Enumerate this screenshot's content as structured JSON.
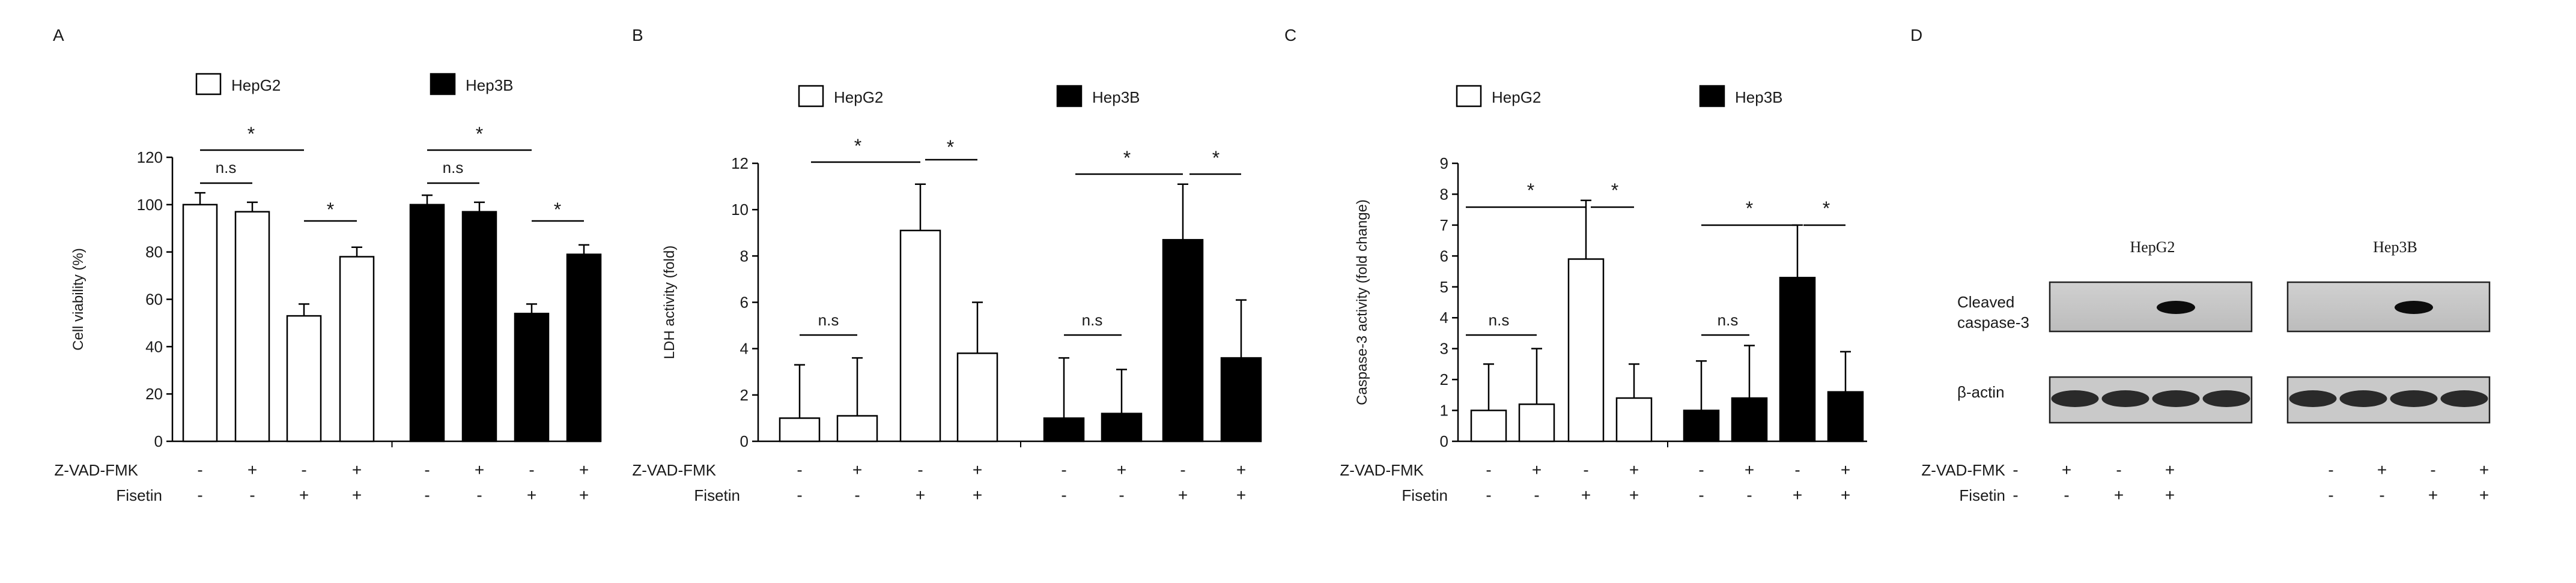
{
  "figure": {
    "panels": [
      "A",
      "B",
      "C",
      "D"
    ],
    "legend": {
      "hepg2": "HepG2",
      "hep3b": "Hep3B"
    },
    "row_labels": {
      "zvad": "Z-VAD-FMK",
      "fisetin": "Fisetin"
    },
    "treatment_signs": {
      "zvad": [
        "-",
        "+",
        "-",
        "+",
        "-",
        "+",
        "-",
        "+"
      ],
      "fisetin": [
        "-",
        "-",
        "+",
        "+",
        "-",
        "-",
        "+",
        "+"
      ]
    },
    "colors": {
      "hepg2": "#ffffff",
      "hep3b": "#000000"
    },
    "markers": {
      "ns": "n.s",
      "star": "*"
    }
  },
  "chart_data": [
    {
      "panel": "A",
      "type": "bar",
      "ylabel": "Cell viability (%)",
      "ylim": [
        0,
        120
      ],
      "yticks": [
        0,
        20,
        40,
        60,
        80,
        100,
        120
      ],
      "series": [
        {
          "name": "HepG2",
          "values": [
            100,
            97,
            53,
            78
          ],
          "errors": [
            5,
            4,
            5,
            4
          ]
        },
        {
          "name": "Hep3B",
          "values": [
            100,
            97,
            54,
            79
          ],
          "errors": [
            4,
            4,
            4,
            4
          ]
        }
      ]
    },
    {
      "panel": "B",
      "type": "bar",
      "ylabel": "LDH activity (fold)",
      "ylim": [
        0,
        12
      ],
      "yticks": [
        0,
        2,
        4,
        6,
        8,
        10,
        12
      ],
      "series": [
        {
          "name": "HepG2",
          "values": [
            1.0,
            1.1,
            9.1,
            3.8
          ],
          "errors": [
            2.3,
            2.5,
            2.0,
            2.2
          ]
        },
        {
          "name": "Hep3B",
          "values": [
            1.0,
            1.2,
            8.7,
            3.6
          ],
          "errors": [
            2.6,
            1.9,
            2.4,
            2.5
          ]
        }
      ]
    },
    {
      "panel": "C",
      "type": "bar",
      "ylabel": "Caspase-3 activity (fold change)",
      "ylim": [
        0,
        9
      ],
      "yticks": [
        0,
        1,
        2,
        3,
        4,
        5,
        6,
        7,
        8,
        9
      ],
      "series": [
        {
          "name": "HepG2",
          "values": [
            1.0,
            1.2,
            5.9,
            1.4
          ],
          "errors": [
            1.5,
            1.8,
            1.9,
            1.1
          ]
        },
        {
          "name": "Hep3B",
          "values": [
            1.0,
            1.4,
            5.3,
            1.6
          ],
          "errors": [
            1.6,
            1.7,
            1.7,
            1.3
          ]
        }
      ]
    }
  ],
  "blot": {
    "panel": "D",
    "cell_lines": [
      "HepG2",
      "Hep3B"
    ],
    "row_labels": [
      "Cleaved caspase-3",
      "β-actin"
    ]
  }
}
